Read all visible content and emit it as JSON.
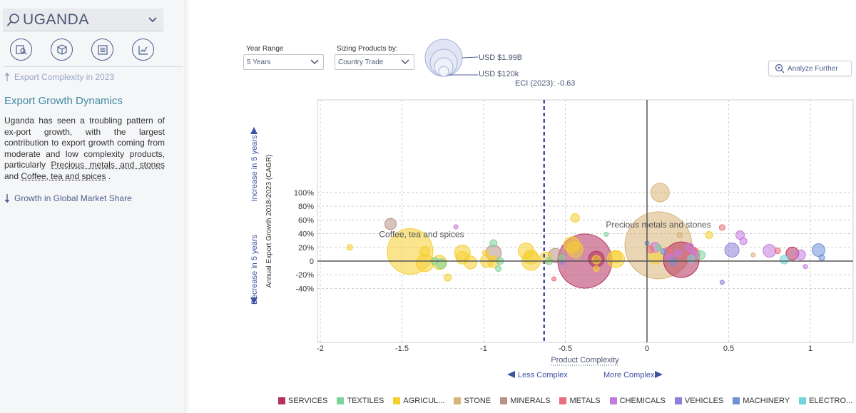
{
  "sidebar": {
    "country": "UGANDA",
    "prev_link": "Export Complexity in 2023",
    "section_title": "Export Growth Dynamics",
    "text_before": "Uganda has seen a troubling pattern of ex-port growth, with the largest contribution to export growth coming from moderate and low complexity products, particularly ",
    "text_hl1": "Precious metals and stones",
    "text_mid": " and ",
    "text_hl2": "Coffee, tea and spices",
    "text_after": " .",
    "next_link": "Growth in Global Market Share",
    "view_icons": [
      "search-map-icon",
      "product-box-icon",
      "list-document-icon",
      "growth-chart-icon"
    ]
  },
  "controls": {
    "year_range_label": "Year Range",
    "year_range_value": "5 Years",
    "sizing_label": "Sizing Products by:",
    "sizing_value": "Country Trade",
    "size_max_label": "USD $1.99B",
    "size_min_label": "USD $120k",
    "analyze_label": "Analyze Further"
  },
  "chart_data": {
    "type": "scatter",
    "title": "",
    "xlabel": "Product Complexity",
    "ylabel": "Annual Export Growth 2018-2023 (CAGR)",
    "xlim": [
      -2.0,
      1.25
    ],
    "ylim": [
      -50,
      115
    ],
    "x_ticks": [
      -2,
      -1.5,
      -1,
      -0.5,
      0,
      0.5,
      1
    ],
    "x_tick_labels": [
      "-2",
      "-1.5",
      "-1",
      "-0.5",
      "0",
      "0.5",
      "1"
    ],
    "y_ticks": [
      -40,
      -20,
      0,
      20,
      40,
      60,
      80,
      100
    ],
    "y_tick_labels": [
      "-40%",
      "-20%",
      "0",
      "20%",
      "40%",
      "60%",
      "80%",
      "100%"
    ],
    "grid": true,
    "eci_value": -0.63,
    "eci_label": "ECI (2023): -0.63",
    "less_complex_label": "Less Complex",
    "more_complex_label": "More Complex",
    "increase_label": "Increase in 5 years",
    "decrease_label": "Decrease in 5 years",
    "annotations": [
      {
        "text": "Coffee, tea and spices",
        "x": -1.38,
        "y": 35
      },
      {
        "text": "Precious metals and stones",
        "x": 0.07,
        "y": 49
      }
    ],
    "sector_colors": {
      "SERVICES": "#b5305e",
      "TEXTILES": "#7dd49b",
      "AGRICULTURE": "#f5cf2f",
      "STONE": "#d8b477",
      "MINERALS": "#b99286",
      "METALS": "#e8707a",
      "CHEMICALS": "#c57bde",
      "VEHICLES": "#8f7ed8",
      "MACHINERY": "#6d93d6",
      "ELECTRONICS": "#6ed6d8"
    },
    "legend": [
      {
        "sector": "SERVICES",
        "label": "SERVICES"
      },
      {
        "sector": "TEXTILES",
        "label": "TEXTILES"
      },
      {
        "sector": "AGRICULTURE",
        "label": "AGRICUL..."
      },
      {
        "sector": "STONE",
        "label": "STONE"
      },
      {
        "sector": "MINERALS",
        "label": "MINERALS"
      },
      {
        "sector": "METALS",
        "label": "METALS"
      },
      {
        "sector": "CHEMICALS",
        "label": "CHEMICALS"
      },
      {
        "sector": "VEHICLES",
        "label": "VEHICLES"
      },
      {
        "sector": "MACHINERY",
        "label": "MACHINERY"
      },
      {
        "sector": "ELECTRONICS",
        "label": "ELECTRO..."
      }
    ],
    "points": [
      {
        "sector": "STONE",
        "x": 0.07,
        "y": 23,
        "r": 47
      },
      {
        "sector": "SERVICES",
        "x": -0.38,
        "y": 0,
        "r": 38
      },
      {
        "sector": "SERVICES",
        "x": 0.21,
        "y": 2,
        "r": 25
      },
      {
        "sector": "AGRICULTURE",
        "x": -1.45,
        "y": 14,
        "r": 32
      },
      {
        "sector": "SERVICES",
        "x": -0.31,
        "y": 3,
        "r": 11
      },
      {
        "sector": "AGRICULTURE",
        "x": -0.31,
        "y": 2,
        "r": 6
      },
      {
        "sector": "STONE",
        "x": 0.08,
        "y": 100,
        "r": 13
      },
      {
        "sector": "MINERALS",
        "x": -1.57,
        "y": 54,
        "r": 8
      },
      {
        "sector": "MINERALS",
        "x": -0.94,
        "y": 12,
        "r": 11
      },
      {
        "sector": "MINERALS",
        "x": -0.56,
        "y": 8,
        "r": 10
      },
      {
        "sector": "AGRICULTURE",
        "x": -0.46,
        "y": 24,
        "r": 11
      },
      {
        "sector": "AGRICULTURE",
        "x": -0.44,
        "y": 17,
        "r": 11
      },
      {
        "sector": "AGRICULTURE",
        "x": -0.44,
        "y": 63,
        "r": 6
      },
      {
        "sector": "AGRICULTURE",
        "x": -0.74,
        "y": 15,
        "r": 11
      },
      {
        "sector": "AGRICULTURE",
        "x": -0.71,
        "y": 6,
        "r": 10
      },
      {
        "sector": "AGRICULTURE",
        "x": -0.71,
        "y": 0,
        "r": 13
      },
      {
        "sector": "AGRICULTURE",
        "x": -0.62,
        "y": 5,
        "r": 8
      },
      {
        "sector": "AGRICULTURE",
        "x": -1.13,
        "y": 12,
        "r": 11
      },
      {
        "sector": "AGRICULTURE",
        "x": -1.13,
        "y": 5,
        "r": 9
      },
      {
        "sector": "AGRICULTURE",
        "x": -1.08,
        "y": -2,
        "r": 9
      },
      {
        "sector": "AGRICULTURE",
        "x": -0.98,
        "y": 0,
        "r": 9
      },
      {
        "sector": "AGRICULTURE",
        "x": -0.94,
        "y": -1,
        "r": 8
      },
      {
        "sector": "AGRICULTURE",
        "x": -1.36,
        "y": 14,
        "r": 7
      },
      {
        "sector": "AGRICULTURE",
        "x": -1.36,
        "y": -3,
        "r": 12
      },
      {
        "sector": "AGRICULTURE",
        "x": -1.27,
        "y": -2,
        "r": 10
      },
      {
        "sector": "AGRICULTURE",
        "x": -1.82,
        "y": 20,
        "r": 4
      },
      {
        "sector": "AGRICULTURE",
        "x": -1.22,
        "y": -24,
        "r": 5
      },
      {
        "sector": "AGRICULTURE",
        "x": -0.19,
        "y": 3,
        "r": 12
      },
      {
        "sector": "AGRICULTURE",
        "x": -0.19,
        "y": 6,
        "r": 8
      },
      {
        "sector": "AGRICULTURE",
        "x": 0.05,
        "y": 5,
        "r": 9
      },
      {
        "sector": "AGRICULTURE",
        "x": 0.38,
        "y": 38,
        "r": 5
      },
      {
        "sector": "AGRICULTURE",
        "x": -0.31,
        "y": -11,
        "r": 4
      },
      {
        "sector": "AGRICULTURE",
        "x": -0.99,
        "y": 12,
        "r": 4
      },
      {
        "sector": "TEXTILES",
        "x": -1.26,
        "y": -4,
        "r": 7
      },
      {
        "sector": "TEXTILES",
        "x": -0.94,
        "y": 26,
        "r": 5
      },
      {
        "sector": "TEXTILES",
        "x": -0.9,
        "y": 0,
        "r": 5
      },
      {
        "sector": "TEXTILES",
        "x": -0.91,
        "y": -11,
        "r": 4
      },
      {
        "sector": "TEXTILES",
        "x": -0.25,
        "y": 39,
        "r": 3
      },
      {
        "sector": "TEXTILES",
        "x": -0.52,
        "y": 5,
        "r": 4
      },
      {
        "sector": "TEXTILES",
        "x": -0.6,
        "y": 0,
        "r": 5
      },
      {
        "sector": "TEXTILES",
        "x": 0.33,
        "y": 9,
        "r": 6
      },
      {
        "sector": "TEXTILES",
        "x": 0.07,
        "y": 20,
        "r": 4
      },
      {
        "sector": "TEXTILES",
        "x": -1.3,
        "y": 0,
        "r": 5
      },
      {
        "sector": "METALS",
        "x": 0.46,
        "y": 49,
        "r": 4
      },
      {
        "sector": "METALS",
        "x": 0.28,
        "y": 10,
        "r": 10
      },
      {
        "sector": "METALS",
        "x": 0.13,
        "y": 14,
        "r": 6
      },
      {
        "sector": "METALS",
        "x": 0.8,
        "y": 15,
        "r": 4
      },
      {
        "sector": "METALS",
        "x": -0.57,
        "y": -26,
        "r": 3
      },
      {
        "sector": "METALS",
        "x": 0.02,
        "y": 17,
        "r": 5
      },
      {
        "sector": "CHEMICALS",
        "x": 0.05,
        "y": 20,
        "r": 7
      },
      {
        "sector": "CHEMICALS",
        "x": 0.26,
        "y": 20,
        "r": 6
      },
      {
        "sector": "CHEMICALS",
        "x": 0.57,
        "y": 38,
        "r": 6
      },
      {
        "sector": "CHEMICALS",
        "x": 0.59,
        "y": 29,
        "r": 5
      },
      {
        "sector": "CHEMICALS",
        "x": 0.75,
        "y": 15,
        "r": 9
      },
      {
        "sector": "CHEMICALS",
        "x": 0.94,
        "y": 9,
        "r": 7
      },
      {
        "sector": "CHEMICALS",
        "x": -1.17,
        "y": 50,
        "r": 3
      },
      {
        "sector": "CHEMICALS",
        "x": 0.97,
        "y": -8,
        "r": 3
      },
      {
        "sector": "CHEMICALS",
        "x": 0.19,
        "y": 12,
        "r": 5
      },
      {
        "sector": "CHEMICALS",
        "x": 0.29,
        "y": 10,
        "r": 5
      },
      {
        "sector": "CHEMICALS",
        "x": 0.14,
        "y": 5,
        "r": 5
      },
      {
        "sector": "VEHICLES",
        "x": 0.52,
        "y": 16,
        "r": 10
      },
      {
        "sector": "VEHICLES",
        "x": 0.46,
        "y": -31,
        "r": 3
      },
      {
        "sector": "VEHICLES",
        "x": -0.52,
        "y": -2,
        "r": 3
      },
      {
        "sector": "MACHINERY",
        "x": 1.05,
        "y": 16,
        "r": 9
      },
      {
        "sector": "MACHINERY",
        "x": 1.07,
        "y": 5,
        "r": 4
      },
      {
        "sector": "MACHINERY",
        "x": 0.1,
        "y": 14,
        "r": 4
      },
      {
        "sector": "MACHINERY",
        "x": 0.0,
        "y": 26,
        "r": 3
      },
      {
        "sector": "MACHINERY",
        "x": 0.16,
        "y": -1,
        "r": 5
      },
      {
        "sector": "ELECTRONICS",
        "x": 0.84,
        "y": 2,
        "r": 6
      },
      {
        "sector": "ELECTRONICS",
        "x": 0.27,
        "y": 3,
        "r": 5
      },
      {
        "sector": "SERVICES",
        "x": 0.89,
        "y": 11,
        "r": 9
      },
      {
        "sector": "STONE",
        "x": 0.2,
        "y": 38,
        "r": 4
      },
      {
        "sector": "STONE",
        "x": 0.65,
        "y": 9,
        "r": 3
      },
      {
        "sector": "STONE",
        "x": -0.43,
        "y": 8,
        "r": 5
      }
    ]
  }
}
